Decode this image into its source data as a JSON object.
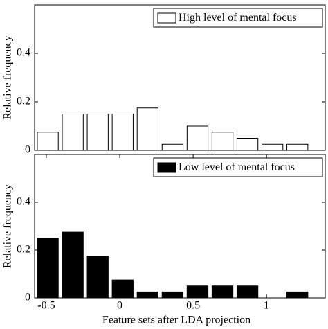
{
  "chart_data": [
    {
      "type": "histogram",
      "ylabel": "Relative frequency",
      "legend": "upper right",
      "bins": [
        -0.575,
        -0.405,
        -0.235,
        -0.065,
        0.105,
        0.275,
        0.445,
        0.615,
        0.785,
        0.955,
        1.125,
        1.295
      ],
      "series": [
        {
          "name": "High level of mental focus",
          "color": "#ffffff",
          "values": [
            0.075,
            0.15,
            0.15,
            0.15,
            0.175,
            0.025,
            0.1,
            0.075,
            0.05,
            0.025,
            0.025
          ]
        }
      ],
      "xlim": [
        -0.58,
        1.4
      ],
      "ylim": [
        0,
        0.6
      ],
      "yticks": [
        0,
        0.2,
        0.4
      ]
    },
    {
      "type": "histogram",
      "ylabel": "Relative frequency",
      "xlabel": "Feature sets after LDA projection",
      "legend": "upper right",
      "bins": [
        -0.575,
        -0.405,
        -0.235,
        -0.065,
        0.105,
        0.275,
        0.445,
        0.615,
        0.785,
        0.955,
        1.125,
        1.295
      ],
      "series": [
        {
          "name": "Low level of mental focus",
          "color": "#000000",
          "values": [
            0.25,
            0.275,
            0.175,
            0.075,
            0.025,
            0.025,
            0.05,
            0.05,
            0.05,
            0,
            0.025
          ]
        }
      ],
      "xlim": [
        -0.58,
        1.4
      ],
      "xticks": [
        -0.5,
        0,
        0.5,
        1
      ],
      "ylim": [
        0,
        0.6
      ],
      "yticks": [
        0,
        0.2,
        0.4
      ]
    }
  ]
}
